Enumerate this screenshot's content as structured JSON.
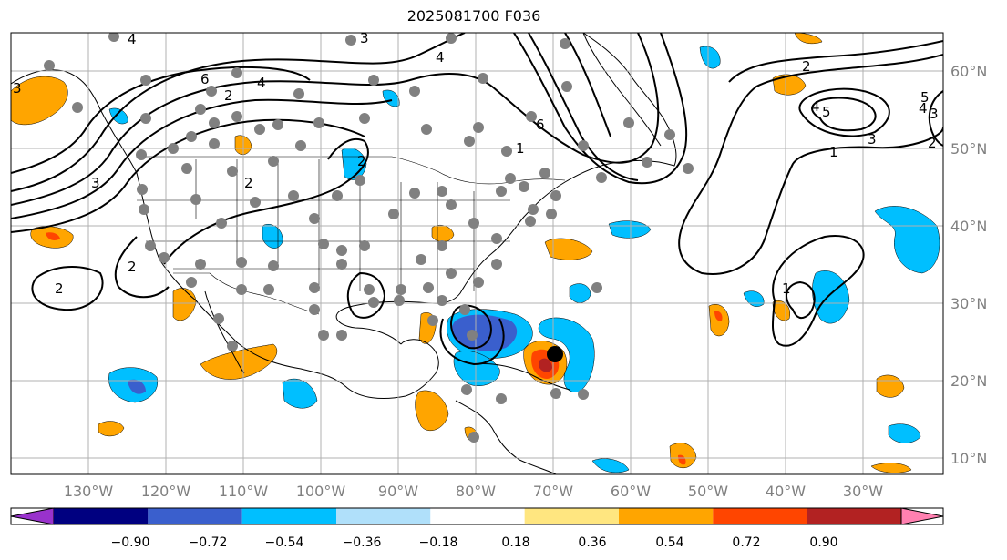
{
  "title": "2025081700 F036",
  "lon_labels": [
    "130°W",
    "120°W",
    "110°W",
    "100°W",
    "90°W",
    "80°W",
    "70°W",
    "60°W",
    "50°W",
    "40°W",
    "30°W"
  ],
  "lat_labels": [
    "60°N",
    "50°N",
    "40°N",
    "30°N",
    "20°N",
    "10°N"
  ],
  "colorbar": {
    "colors": [
      "#9932cc",
      "#000080",
      "#3a5fcd",
      "#00bfff",
      "#b0e0fa",
      "#ffffff",
      "#ffe680",
      "#ffa500",
      "#ff4500",
      "#b22222",
      "#ff80b0"
    ],
    "tick_labels": [
      "−0.90",
      "−0.72",
      "−0.54",
      "−0.36",
      "−0.18",
      "0.18",
      "0.36",
      "0.54",
      "0.72",
      "0.90"
    ]
  },
  "contour_labels": [
    "4",
    "3",
    "6",
    "2",
    "4",
    "3",
    "2",
    "3",
    "2",
    "6",
    "2",
    "1",
    "2",
    "4",
    "3",
    "1",
    "2",
    "3",
    "4",
    "5",
    "5",
    "4",
    "2",
    "1"
  ],
  "storm_marker": {
    "lon": -68.5,
    "lat": 23.5
  }
}
